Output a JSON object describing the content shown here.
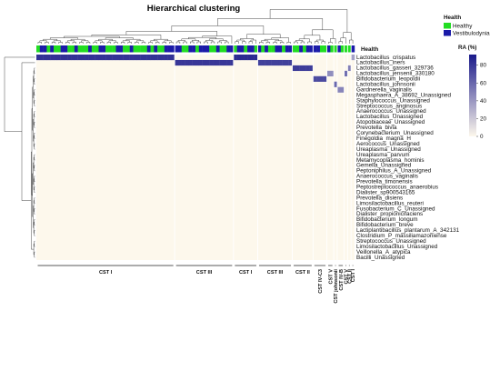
{
  "chart_data": {
    "type": "heatmap",
    "title": "Hierarchical clustering",
    "annotation_row_label": "Health",
    "legend_health": {
      "title": "Health",
      "items": [
        {
          "label": "Healthy",
          "color": "#22dd22"
        },
        {
          "label": "Vestibulodynia",
          "color": "#1a1aa8"
        }
      ]
    },
    "colorbar": {
      "title": "RA (%)",
      "ticks": [
        0,
        20,
        40,
        60,
        80
      ],
      "range": [
        0,
        92
      ],
      "low_color": "#fdf8ec",
      "high_color": "#1a1a8a"
    },
    "rows": [
      "Lactobacillus_crispatus",
      "Lactobacillus_iners",
      "Lactobacillus_gasseri_329736",
      "Lactobacillus_jensenii_330180",
      "Bifidobacterium_leopoldii",
      "Lactobacillus_johnsonii",
      "Gardnerella_vaginalis",
      "Megasphaera_A_38692_Unassigned",
      "Staphylococcus_Unassigned",
      "Streptococcus_anginosus",
      "Anaerococcus_Unassigned",
      "Lactobacillus_Unassigned",
      "Atopobiaceae_Unassigned",
      "Prevotella_bivia",
      "Corynebacterium_Unassigned",
      "Finegoldia_magna_H",
      "Aerococcus_Unassigned",
      "Ureaplasma_Unassigned",
      "Ureaplasma_parvum",
      "Metamycoplasma_hominis",
      "Gemella_Unassigned",
      "Peptoniphilus_A_Unassigned",
      "Anaerococcus_vaginalis",
      "Prevotella_timonensis",
      "Peptostreptococcus_anaerobius",
      "Dialister_sp900543165",
      "Prevotella_disiens",
      "Limosilactobacillus_reuteri",
      "Fusobacterium_C_Unassigned",
      "Dialister_propionicifaciens",
      "Bifidobacterium_longum",
      "Bifidobacterium_breve",
      "Lactiplantibacillus_plantarum_A_342131",
      "Clostridium_P_massiliamazoniense",
      "Streptococcus_Unassigned",
      "Limosilactobacillus_Unassigned",
      "Veillonella_A_atypica",
      "Bacilli_Unassigned"
    ],
    "clusters": [
      {
        "label": "CST I",
        "dominant_row": 0,
        "value": 82,
        "health": [
          0,
          1,
          1,
          0,
          1,
          0,
          0,
          1,
          1,
          0,
          0,
          1,
          0,
          0,
          0,
          1,
          0,
          0,
          1,
          1,
          0,
          0,
          0,
          1,
          1,
          0,
          0,
          1,
          0,
          0,
          0,
          0,
          1,
          0,
          1,
          0,
          0,
          1,
          1,
          1
        ]
      },
      {
        "label": "CST III",
        "dominant_row": 1,
        "value": 80,
        "health": [
          1,
          1,
          0,
          0,
          1,
          1,
          0,
          1,
          1,
          1,
          0,
          0,
          1,
          0,
          0,
          1,
          1
        ]
      },
      {
        "label": "CST I",
        "dominant_row": 0,
        "value": 85,
        "health": [
          0,
          1,
          1,
          0,
          1,
          1,
          0
        ]
      },
      {
        "label": "CST III",
        "dominant_row": 1,
        "value": 76,
        "health": [
          1,
          0,
          1,
          0,
          0,
          1,
          1,
          0,
          1,
          1
        ]
      },
      {
        "label": "CST II",
        "dominant_row": 2,
        "value": 78,
        "health": [
          0,
          0,
          1,
          0,
          1,
          1
        ]
      },
      {
        "label": "CST IV-C3",
        "dominant_row": 4,
        "value": 72,
        "health": [
          1,
          1,
          0,
          0
        ]
      },
      {
        "label": "CST V",
        "dominant_row": 3,
        "value": 44,
        "health": [
          1,
          0
        ]
      },
      {
        "label": "CST johnsonii",
        "dominant_row": 5,
        "value": 60,
        "health": [
          0
        ]
      },
      {
        "label": "CST IV-B",
        "dominant_row": 6,
        "value": 48,
        "health": [
          1,
          0
        ]
      },
      {
        "label": "CST V",
        "dominant_row": 3,
        "value": 58,
        "health": [
          0
        ]
      },
      {
        "label": "CST II",
        "dominant_row": 2,
        "value": 50,
        "health": [
          0
        ]
      },
      {
        "label": "CST I",
        "dominant_row": 0,
        "value": 36,
        "health": [
          1
        ]
      }
    ]
  }
}
